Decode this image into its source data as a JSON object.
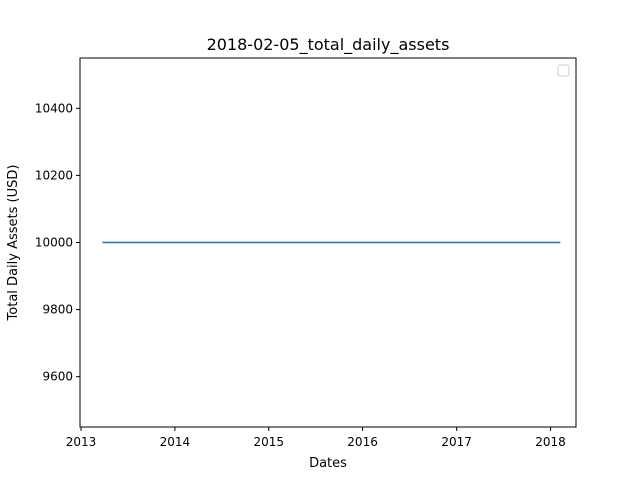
{
  "chart_data": {
    "type": "line",
    "title": "2018-02-05_total_daily_assets",
    "xlabel": "Dates",
    "ylabel": "Total Daily Assets (USD)",
    "x_ticks": [
      "2013",
      "2014",
      "2015",
      "2016",
      "2017",
      "2018"
    ],
    "y_ticks": [
      "9600",
      "9800",
      "10000",
      "10200",
      "10400"
    ],
    "xlim": [
      "2012-12-28",
      "2018-04-10"
    ],
    "ylim": [
      9450,
      10550
    ],
    "grid": false,
    "legend": {
      "placement": "top-right",
      "entries": []
    },
    "series": [
      {
        "color": "#1f77b4",
        "x": [
          "2013-03-28",
          "2018-02-05"
        ],
        "y": [
          10000,
          10000
        ]
      }
    ]
  }
}
